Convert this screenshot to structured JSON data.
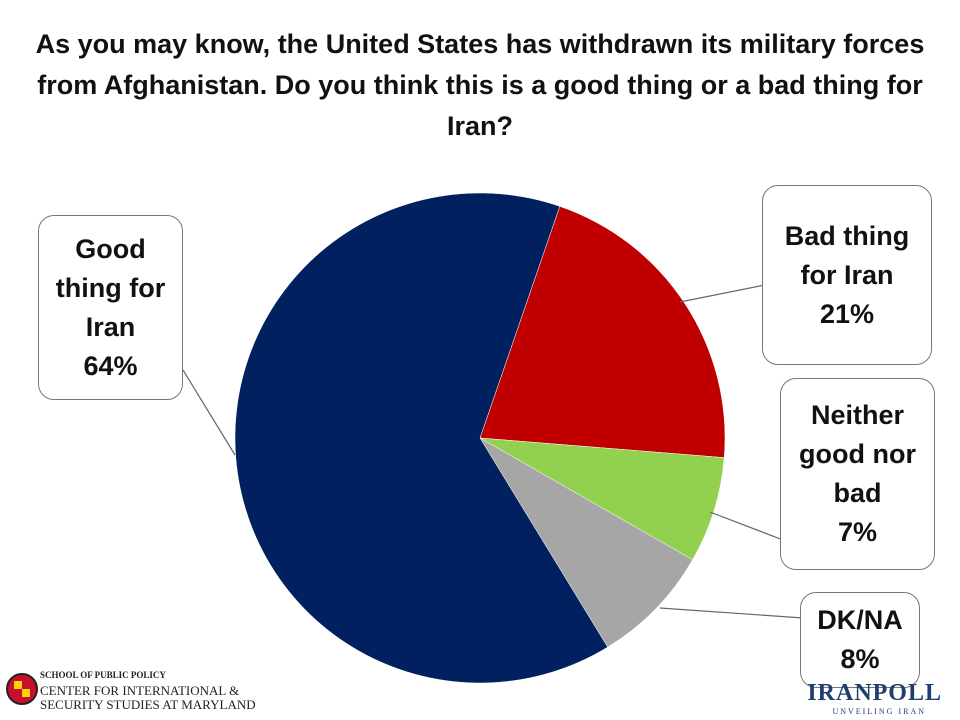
{
  "chart_data": {
    "type": "pie",
    "title": "As you may know, the United States has withdrawn its military forces from Afghanistan.  Do you think this is a good thing or a bad thing for Iran?",
    "categories": [
      "Bad thing for Iran",
      "Neither good nor bad",
      "DK/NA",
      "Good thing for Iran"
    ],
    "values": [
      21,
      7,
      8,
      64
    ],
    "value_labels": [
      "21%",
      "7%",
      "8%",
      "64%"
    ],
    "colors": [
      "#c00000",
      "#92d050",
      "#a6a6a6",
      "#002060"
    ]
  },
  "footer": {
    "left": [
      "SCHOOL OF PUBLIC POLICY",
      "CENTER FOR INTERNATIONAL &",
      "SECURITY STUDIES AT MARYLAND"
    ],
    "right": [
      "IRANPOLL",
      "UNVEILING IRAN"
    ]
  }
}
